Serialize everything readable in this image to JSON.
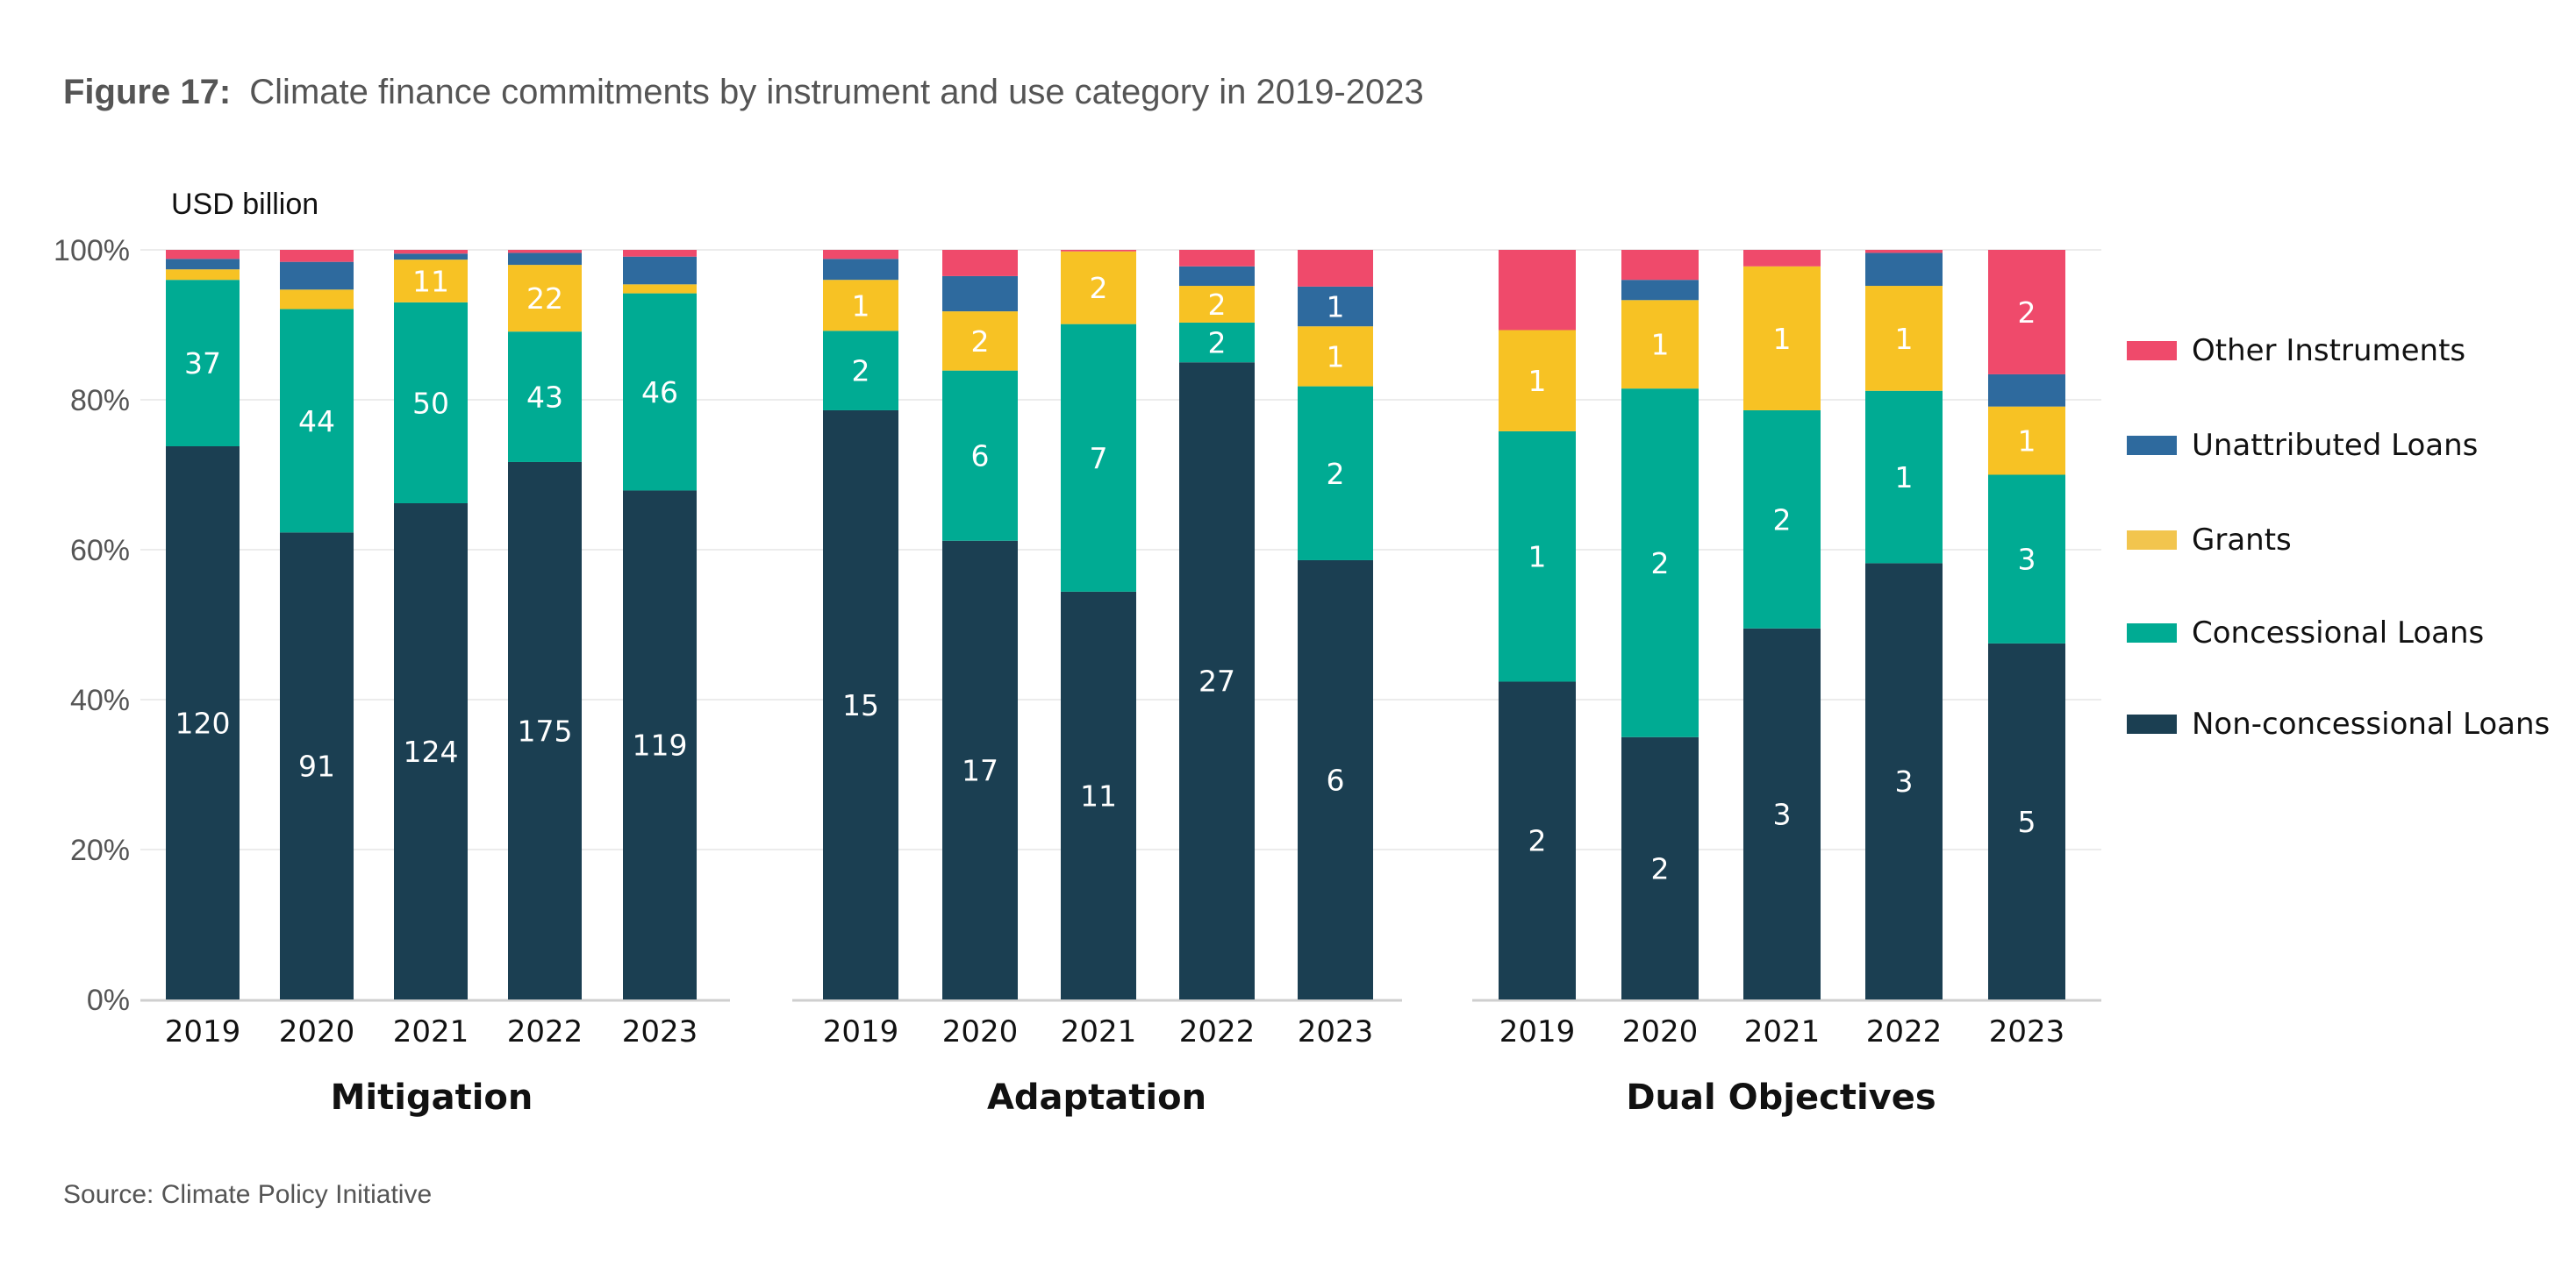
{
  "figure": {
    "label": "Figure 17:",
    "title": "Climate finance commitments by instrument and use category in 2019-2023",
    "source": "Source: Climate Policy Initiative"
  },
  "colors": {
    "Other Instruments": "#ef4a6b",
    "Unattributed Loans": "#2e6a9e",
    "Grants": "#f7c224",
    "Concessional Loans": "#00ab93",
    "Non-concessional Loans": "#1b3f52",
    "legend_grants": "#f2c54e",
    "grid": "#e6e6e6",
    "axis": "#cfcfcf",
    "text": "#111111",
    "muted": "#555555"
  },
  "chart_data": {
    "type": "bar",
    "stacked": true,
    "normalized": true,
    "unit_label": "USD billion",
    "y_ticks": [
      "0%",
      "20%",
      "40%",
      "60%",
      "80%",
      "100%"
    ],
    "ylim": [
      0,
      100
    ],
    "grid": true,
    "legend_position": "right",
    "legend": [
      "Other Instruments",
      "Unattributed Loans",
      "Grants",
      "Concessional Loans",
      "Non-concessional Loans"
    ],
    "stack_order": [
      "Non-concessional Loans",
      "Concessional Loans",
      "Grants",
      "Unattributed Loans",
      "Other Instruments"
    ],
    "groups": [
      {
        "name": "Mitigation",
        "categories": [
          "2019",
          "2020",
          "2021",
          "2022",
          "2023"
        ],
        "series": [
          {
            "name": "Non-concessional Loans",
            "pct": [
              73.8,
              62.3,
              66.2,
              71.7,
              67.9
            ],
            "labels": [
              "120",
              "91",
              "124",
              "175",
              "119"
            ]
          },
          {
            "name": "Concessional Loans",
            "pct": [
              22.2,
              29.8,
              26.8,
              17.4,
              26.3
            ],
            "labels": [
              "37",
              "44",
              "50",
              "43",
              "46"
            ]
          },
          {
            "name": "Grants",
            "pct": [
              1.4,
              2.6,
              5.7,
              8.9,
              1.2
            ],
            "labels": [
              "",
              "",
              "11",
              "22",
              ""
            ]
          },
          {
            "name": "Unattributed Loans",
            "pct": [
              1.4,
              3.7,
              0.8,
              1.6,
              3.7
            ],
            "labels": [
              "",
              "",
              "",
              "",
              ""
            ]
          },
          {
            "name": "Other Instruments",
            "pct": [
              1.2,
              1.6,
              0.5,
              0.4,
              0.9
            ],
            "labels": [
              "",
              "",
              "",
              "",
              ""
            ]
          }
        ]
      },
      {
        "name": "Adaptation",
        "categories": [
          "2019",
          "2020",
          "2021",
          "2022",
          "2023"
        ],
        "series": [
          {
            "name": "Non-concessional Loans",
            "pct": [
              78.6,
              61.2,
              54.4,
              85.0,
              58.6
            ],
            "labels": [
              "15",
              "17",
              "11",
              "27",
              "6"
            ]
          },
          {
            "name": "Concessional Loans",
            "pct": [
              10.6,
              22.7,
              35.7,
              5.3,
              23.2
            ],
            "labels": [
              "2",
              "6",
              "7",
              "2",
              "2"
            ]
          },
          {
            "name": "Grants",
            "pct": [
              6.8,
              7.9,
              9.7,
              4.9,
              8.0
            ],
            "labels": [
              "1",
              "2",
              "2",
              "2",
              "1"
            ]
          },
          {
            "name": "Unattributed Loans",
            "pct": [
              2.8,
              4.7,
              0,
              2.6,
              5.3
            ],
            "labels": [
              "",
              "",
              "",
              "",
              "1"
            ]
          },
          {
            "name": "Other Instruments",
            "pct": [
              1.2,
              3.5,
              0.2,
              2.2,
              4.9
            ],
            "labels": [
              "",
              "",
              "",
              "",
              ""
            ]
          }
        ]
      },
      {
        "name": "Dual Objectives",
        "categories": [
          "2019",
          "2020",
          "2021",
          "2022",
          "2023"
        ],
        "series": [
          {
            "name": "Non-concessional Loans",
            "pct": [
              42.4,
              35.0,
              49.5,
              58.2,
              47.5
            ],
            "labels": [
              "2",
              "2",
              "3",
              "3",
              "5"
            ]
          },
          {
            "name": "Concessional Loans",
            "pct": [
              33.4,
              46.5,
              29.1,
              23.0,
              22.5
            ],
            "labels": [
              "1",
              "2",
              "2",
              "1",
              "3"
            ]
          },
          {
            "name": "Grants",
            "pct": [
              13.5,
              11.8,
              19.2,
              14.0,
              9.1
            ],
            "labels": [
              "1",
              "1",
              "1",
              "1",
              "1"
            ]
          },
          {
            "name": "Unattributed Loans",
            "pct": [
              0,
              2.7,
              0,
              4.4,
              4.3
            ],
            "labels": [
              "",
              "",
              "",
              "",
              ""
            ]
          },
          {
            "name": "Other Instruments",
            "pct": [
              10.7,
              4.0,
              2.2,
              0.4,
              16.6
            ],
            "labels": [
              "",
              "",
              "",
              "",
              "2"
            ]
          }
        ]
      }
    ]
  }
}
